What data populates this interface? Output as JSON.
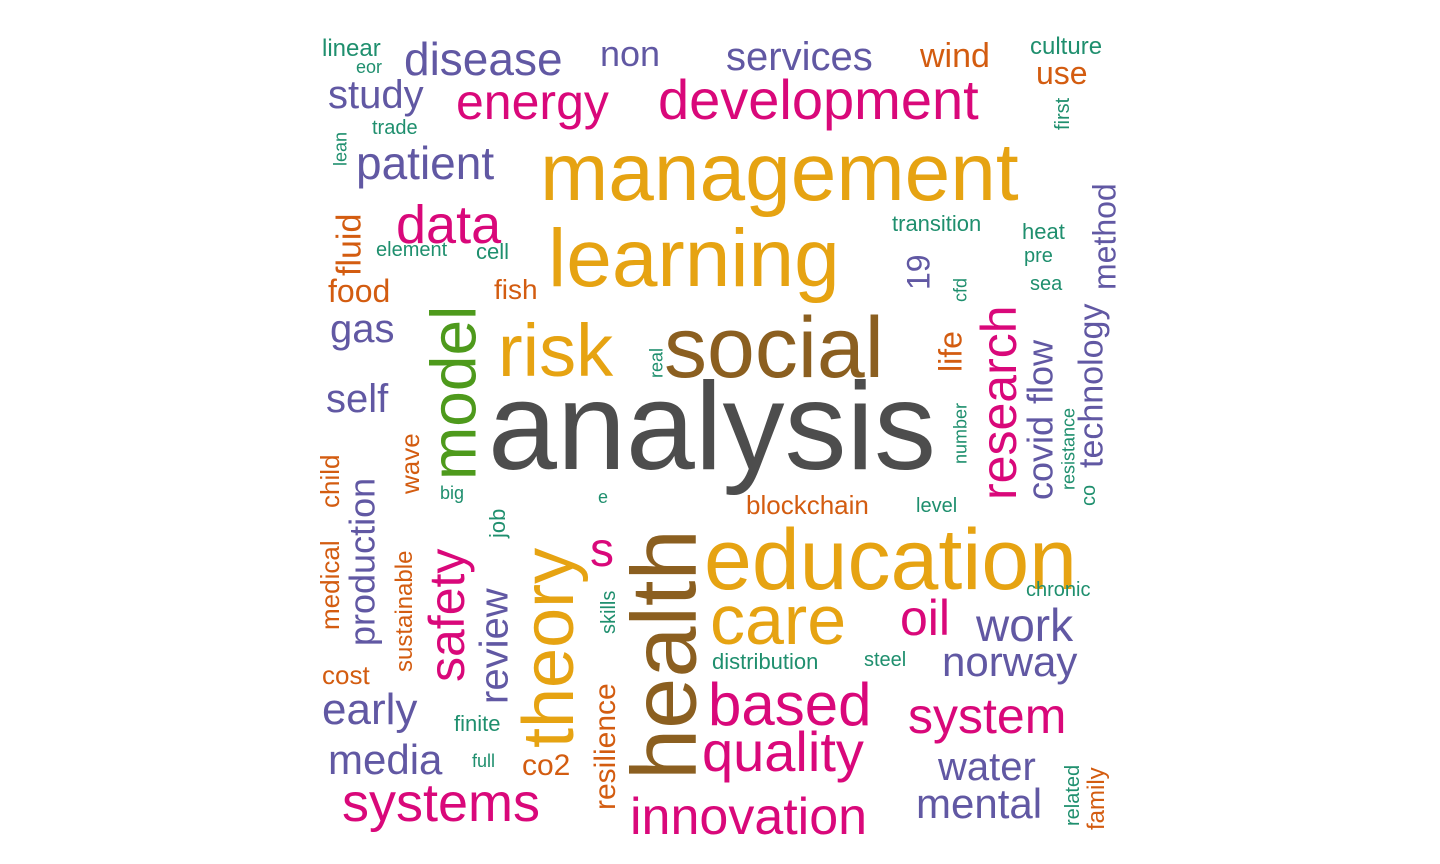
{
  "chart_data": {
    "type": "wordcloud",
    "color_groups": {
      "grey": "#4d4d4d",
      "gold": "#e6a312",
      "brown": "#8b5f20",
      "magenta": "#d9087a",
      "purple": "#6158a3",
      "green": "#4e9a1c",
      "orange": "#d35c10",
      "teal": "#1f8f6e"
    },
    "words": [
      {
        "text": "analysis",
        "color": "grey"
      },
      {
        "text": "social",
        "color": "brown"
      },
      {
        "text": "management",
        "color": "gold"
      },
      {
        "text": "learning",
        "color": "gold"
      },
      {
        "text": "health",
        "color": "brown"
      },
      {
        "text": "education",
        "color": "gold"
      },
      {
        "text": "risk",
        "color": "gold"
      },
      {
        "text": "theory",
        "color": "gold"
      },
      {
        "text": "care",
        "color": "gold"
      },
      {
        "text": "development",
        "color": "magenta"
      },
      {
        "text": "model",
        "color": "green"
      },
      {
        "text": "research",
        "color": "magenta"
      },
      {
        "text": "energy",
        "color": "magenta"
      },
      {
        "text": "based",
        "color": "magenta"
      },
      {
        "text": "quality",
        "color": "magenta"
      },
      {
        "text": "innovation",
        "color": "magenta"
      },
      {
        "text": "systems",
        "color": "magenta"
      },
      {
        "text": "data",
        "color": "magenta"
      },
      {
        "text": "safety",
        "color": "magenta"
      },
      {
        "text": "system",
        "color": "magenta"
      },
      {
        "text": "oil",
        "color": "magenta"
      },
      {
        "text": "s",
        "color": "magenta"
      },
      {
        "text": "disease",
        "color": "purple"
      },
      {
        "text": "patient",
        "color": "purple"
      },
      {
        "text": "services",
        "color": "purple"
      },
      {
        "text": "work",
        "color": "purple"
      },
      {
        "text": "norway",
        "color": "purple"
      },
      {
        "text": "review",
        "color": "purple"
      },
      {
        "text": "mental",
        "color": "purple"
      },
      {
        "text": "media",
        "color": "purple"
      },
      {
        "text": "early",
        "color": "purple"
      },
      {
        "text": "water",
        "color": "purple"
      },
      {
        "text": "covid",
        "color": "purple"
      },
      {
        "text": "technology",
        "color": "purple"
      },
      {
        "text": "production",
        "color": "purple"
      },
      {
        "text": "study",
        "color": "purple"
      },
      {
        "text": "non",
        "color": "purple"
      },
      {
        "text": "self",
        "color": "purple"
      },
      {
        "text": "gas",
        "color": "purple"
      },
      {
        "text": "method",
        "color": "purple"
      },
      {
        "text": "flow",
        "color": "purple"
      },
      {
        "text": "19",
        "color": "purple"
      },
      {
        "text": "wind",
        "color": "orange"
      },
      {
        "text": "use",
        "color": "orange"
      },
      {
        "text": "food",
        "color": "orange"
      },
      {
        "text": "fluid",
        "color": "orange"
      },
      {
        "text": "fish",
        "color": "orange"
      },
      {
        "text": "life",
        "color": "orange"
      },
      {
        "text": "co2",
        "color": "orange"
      },
      {
        "text": "resilience",
        "color": "orange"
      },
      {
        "text": "blockchain",
        "color": "orange"
      },
      {
        "text": "child",
        "color": "orange"
      },
      {
        "text": "medical",
        "color": "orange"
      },
      {
        "text": "wave",
        "color": "orange"
      },
      {
        "text": "sustainable",
        "color": "orange"
      },
      {
        "text": "cost",
        "color": "orange"
      },
      {
        "text": "family",
        "color": "orange"
      },
      {
        "text": "linear",
        "color": "teal"
      },
      {
        "text": "eor",
        "color": "teal"
      },
      {
        "text": "culture",
        "color": "teal"
      },
      {
        "text": "trade",
        "color": "teal"
      },
      {
        "text": "lean",
        "color": "teal"
      },
      {
        "text": "first",
        "color": "teal"
      },
      {
        "text": "transition",
        "color": "teal"
      },
      {
        "text": "heat",
        "color": "teal"
      },
      {
        "text": "element",
        "color": "teal"
      },
      {
        "text": "cell",
        "color": "teal"
      },
      {
        "text": "pre",
        "color": "teal"
      },
      {
        "text": "sea",
        "color": "teal"
      },
      {
        "text": "cfd",
        "color": "teal"
      },
      {
        "text": "real",
        "color": "teal"
      },
      {
        "text": "number",
        "color": "teal"
      },
      {
        "text": "resistance",
        "color": "teal"
      },
      {
        "text": "co",
        "color": "teal"
      },
      {
        "text": "big",
        "color": "teal"
      },
      {
        "text": "e",
        "color": "teal"
      },
      {
        "text": "level",
        "color": "teal"
      },
      {
        "text": "job",
        "color": "teal"
      },
      {
        "text": "chronic",
        "color": "teal"
      },
      {
        "text": "skills",
        "color": "teal"
      },
      {
        "text": "distribution",
        "color": "teal"
      },
      {
        "text": "steel",
        "color": "teal"
      },
      {
        "text": "finite",
        "color": "teal"
      },
      {
        "text": "full",
        "color": "teal"
      },
      {
        "text": "related",
        "color": "teal"
      }
    ]
  }
}
